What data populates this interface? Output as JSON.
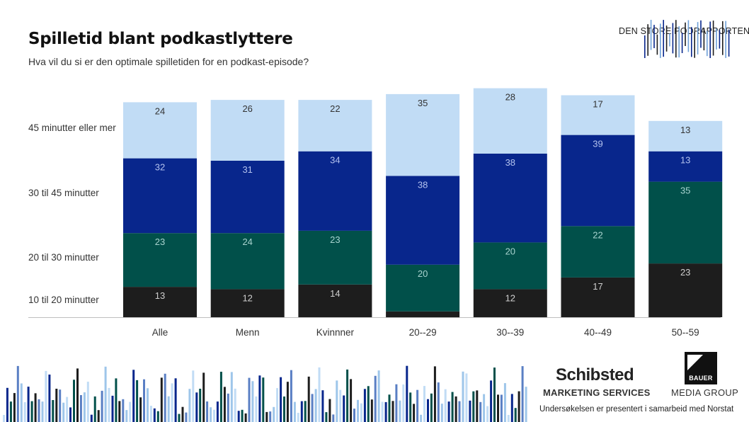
{
  "header": {
    "title": "Spilletid blant podkastlyttere",
    "subtitle": "Hva vil du si er den optimale spilletiden for en podkast-episode?",
    "brand": "DEN STORE PODRAPPORTEN"
  },
  "footer": {
    "schibsted": "Schibsted",
    "schibsted_sub": "MARKETING SERVICES",
    "bauer": "BAUER",
    "bauer_sub": "MEDIA GROUP",
    "note": "Undersøkelsen er presentert i samarbeid med Norstat"
  },
  "chart_data": {
    "type": "bar",
    "stacked": true,
    "categories": [
      "Alle",
      "Menn",
      "Kvinnner",
      "20--29",
      "30--39",
      "40--49",
      "50--59"
    ],
    "series": [
      {
        "name": "10 til 20 minutter",
        "color": "#1d1d1d",
        "label_color": "#cfcfcf",
        "values": [
          13,
          12,
          14,
          null,
          12,
          17,
          23
        ]
      },
      {
        "name": "20 til 30 minutter",
        "color": "#01504a",
        "label_color": "#a8d3cf",
        "values": [
          23,
          24,
          23,
          20,
          20,
          22,
          35
        ]
      },
      {
        "name": "30 til 45 minutter",
        "color": "#08268c",
        "label_color": "#b3c2ee",
        "values": [
          32,
          31,
          34,
          38,
          38,
          39,
          13
        ]
      },
      {
        "name": "45 minutter eller mer",
        "color": "#c1dcf5",
        "label_color": "#333333",
        "values": [
          24,
          26,
          22,
          35,
          28,
          17,
          13
        ]
      }
    ],
    "bottom_segment_values": [
      13,
      12,
      14,
      2.5,
      12,
      17,
      23
    ],
    "legend_placement": "left",
    "grid": false
  }
}
